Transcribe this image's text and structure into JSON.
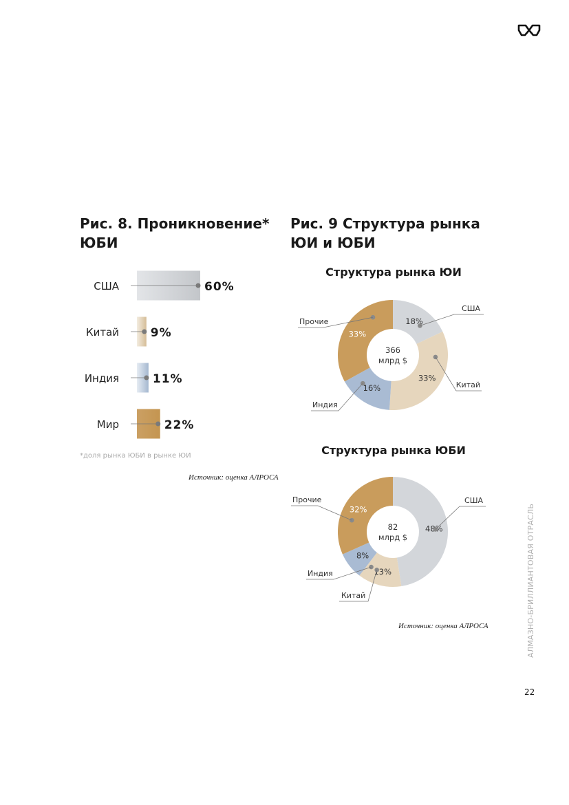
{
  "logo": {
    "icon": "alrosa-logo-icon"
  },
  "fig8": {
    "title": "Рис. 8. Проникновение* ЮБИ",
    "footnote": "*доля рынка ЮБИ в рынке ЮИ",
    "source": "Источник: оценка АЛРОСА"
  },
  "fig9": {
    "title": "Рис. 9 Структура рынка ЮИ и ЮБИ",
    "source": "Источник: оценка АЛРОСА"
  },
  "side_text": "АЛМАЗНО-БРИЛЛИАНТОВАЯ ОТРАСЛЬ",
  "page_number": "22",
  "colors": {
    "usa": "#cfd2d6",
    "china": "#e3d2b8",
    "india": "#a9bbd2",
    "other": "#c99c5c",
    "marker": "#888888"
  },
  "chart_data": [
    {
      "type": "bar",
      "orientation": "horizontal",
      "categories": [
        "США",
        "Китай",
        "Индия",
        "Мир"
      ],
      "values": [
        60,
        9,
        11,
        22
      ],
      "value_labels": [
        "60%",
        "9%",
        "11%",
        "22%"
      ],
      "xlim": [
        0,
        100
      ]
    },
    {
      "type": "pie",
      "title": "Структура рынка ЮИ",
      "center_label": [
        "366",
        "млрд $"
      ],
      "slices": [
        {
          "label": "США",
          "value": 18,
          "value_label": "18%",
          "color": "usa"
        },
        {
          "label": "Китай",
          "value": 33,
          "value_label": "33%",
          "color": "china"
        },
        {
          "label": "Индия",
          "value": 16,
          "value_label": "16%",
          "color": "india"
        },
        {
          "label": "Прочие",
          "value": 33,
          "value_label": "33%",
          "color": "other"
        }
      ]
    },
    {
      "type": "pie",
      "title": "Структура рынка ЮБИ",
      "center_label": [
        "82",
        "млрд $"
      ],
      "slices": [
        {
          "label": "США",
          "value": 48,
          "value_label": "48%",
          "color": "usa"
        },
        {
          "label": "Китай",
          "value": 13,
          "value_label": "13%",
          "color": "china"
        },
        {
          "label": "Индия",
          "value": 8,
          "value_label": "8%",
          "color": "india"
        },
        {
          "label": "Прочие",
          "value": 32,
          "value_label": "32%",
          "color": "other"
        }
      ]
    }
  ]
}
